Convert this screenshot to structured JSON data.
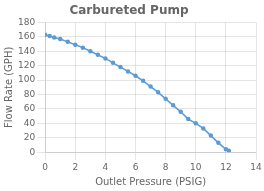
{
  "chart_data": {
    "type": "line",
    "title": "Carbureted Pump",
    "xlabel": "Outlet Pressure (PSIG)",
    "ylabel": "Flow Rate (GPH)",
    "x": [
      0,
      0.3,
      0.6,
      1.0,
      1.5,
      2.0,
      2.5,
      3.0,
      3.5,
      4.0,
      4.5,
      5.0,
      5.5,
      6.0,
      6.5,
      7.0,
      7.5,
      8.0,
      8.5,
      9.0,
      9.5,
      10.0,
      10.5,
      11.0,
      11.5,
      12.0,
      12.2
    ],
    "values": [
      163,
      161,
      159,
      157,
      153,
      149,
      145,
      140,
      135,
      130,
      124,
      118,
      112,
      106,
      99,
      91,
      83,
      74,
      65,
      56,
      46,
      40,
      33,
      23,
      13,
      4,
      2
    ],
    "color": "#5b9bd5",
    "marker": "dot",
    "xlim": [
      0,
      14
    ],
    "ylim": [
      0,
      180
    ],
    "xticks": [
      0,
      2,
      4,
      6,
      8,
      10,
      12,
      14
    ],
    "yticks": [
      0,
      20,
      40,
      60,
      80,
      100,
      120,
      140,
      160,
      180
    ],
    "grid": true
  }
}
